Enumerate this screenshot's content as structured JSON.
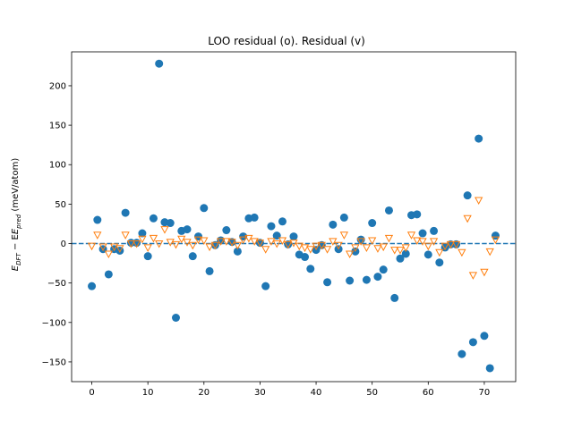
{
  "chart_data": {
    "type": "scatter",
    "title": "LOO residual (o). Residual (v)",
    "ylabel_main": "E",
    "ylabel_sub1": "DFT",
    "ylabel_minus": " − E",
    "ylabel_sub2": "pred",
    "ylabel_unit": " (meV/atom)",
    "xlim": [
      -3.6,
      75.6
    ],
    "ylim": [
      -175,
      243
    ],
    "xticks": [
      0,
      10,
      20,
      30,
      40,
      50,
      60,
      70
    ],
    "yticks": [
      -150,
      -100,
      -50,
      0,
      50,
      100,
      150,
      200
    ],
    "reference_line": 0,
    "colors": {
      "loo": "#1f77b4",
      "residual": "#ff7f0e"
    },
    "series": [
      {
        "marker": "circle",
        "x": [
          0,
          1,
          2,
          3,
          4,
          5,
          6,
          7,
          8,
          9,
          10,
          11,
          12,
          13,
          14,
          15,
          16,
          17,
          18,
          19,
          20,
          21,
          22,
          23,
          24,
          25,
          26,
          27,
          28,
          29,
          30,
          31,
          32,
          33,
          34,
          35,
          36,
          37,
          38,
          39,
          40,
          41,
          42,
          43,
          44,
          45,
          46,
          47,
          48,
          49,
          50,
          51,
          52,
          53,
          54,
          55,
          56,
          57,
          58,
          59,
          60,
          61,
          62,
          63,
          64,
          65,
          66,
          67,
          68,
          69,
          70,
          71,
          72
        ],
        "y": [
          -54,
          30,
          -7,
          -39,
          -7,
          -9,
          39,
          1,
          1,
          13,
          -16,
          32,
          228,
          27,
          26,
          -94,
          16,
          18,
          -16,
          9,
          45,
          -35,
          -2,
          4,
          17,
          2,
          -10,
          9,
          32,
          33,
          1,
          -54,
          22,
          10,
          28,
          -1,
          9,
          -14,
          -17,
          -32,
          -8,
          -2,
          -49,
          24,
          -7,
          33,
          -47,
          -10,
          5,
          -46,
          26,
          -42,
          -33,
          42,
          -69,
          -19,
          -13,
          36,
          37,
          13,
          -14,
          16,
          -24,
          -5,
          -1,
          -1,
          -140,
          61,
          -125,
          133,
          -117,
          -158,
          10
        ]
      },
      {
        "marker": "triangle-down",
        "x": [
          0,
          1,
          2,
          3,
          4,
          5,
          6,
          7,
          8,
          9,
          10,
          11,
          12,
          13,
          14,
          15,
          16,
          17,
          18,
          19,
          20,
          21,
          22,
          23,
          24,
          25,
          26,
          27,
          28,
          29,
          30,
          31,
          32,
          33,
          34,
          35,
          36,
          37,
          38,
          39,
          40,
          41,
          42,
          43,
          44,
          45,
          46,
          47,
          48,
          49,
          50,
          51,
          52,
          53,
          54,
          55,
          56,
          57,
          58,
          59,
          60,
          61,
          62,
          63,
          64,
          65,
          66,
          67,
          68,
          69,
          70,
          71,
          72
        ],
        "y": [
          -3,
          11,
          -4,
          -13,
          -4,
          -6,
          11,
          0,
          0,
          6,
          -5,
          7,
          0,
          18,
          2,
          -1,
          6,
          2,
          -2,
          5,
          4,
          -4,
          -2,
          3,
          3,
          2,
          -2,
          5,
          7,
          3,
          1,
          -7,
          3,
          0,
          4,
          -1,
          1,
          -3,
          -5,
          -7,
          -3,
          -2,
          -7,
          3,
          -2,
          11,
          -13,
          -5,
          3,
          -5,
          4,
          -6,
          -4,
          7,
          -8,
          -8,
          -5,
          11,
          4,
          3,
          -3,
          3,
          -11,
          -3,
          -1,
          -1,
          -11,
          32,
          -40,
          55,
          -36,
          -10,
          5
        ]
      }
    ]
  }
}
